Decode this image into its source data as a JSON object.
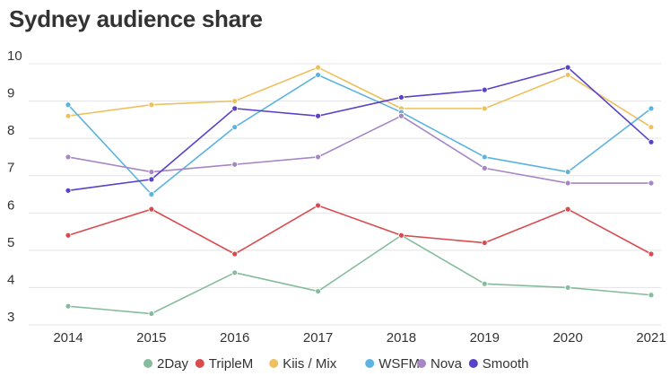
{
  "chart_data": {
    "type": "line",
    "title": "Sydney audience share",
    "xlabel": "",
    "ylabel": "",
    "x": [
      "2014",
      "2015",
      "2016",
      "2017",
      "2018",
      "2019",
      "2020",
      "2021"
    ],
    "ylim": [
      3,
      10
    ],
    "yticks": [
      "3",
      "4",
      "5",
      "6",
      "7",
      "8",
      "9",
      "10"
    ],
    "grid": true,
    "legend_position": "bottom",
    "series": [
      {
        "name": "2Day",
        "color": "#86bc9d",
        "values": [
          3.5,
          3.3,
          4.4,
          3.9,
          5.4,
          4.1,
          4.0,
          3.8
        ]
      },
      {
        "name": "TripleM",
        "color": "#d94b4f",
        "values": [
          5.4,
          6.1,
          4.9,
          6.2,
          5.4,
          5.2,
          6.1,
          4.9
        ]
      },
      {
        "name": "Kiis / Mix",
        "color": "#eec05e",
        "values": [
          8.6,
          8.9,
          9.0,
          9.9,
          8.8,
          8.8,
          9.7,
          8.3
        ]
      },
      {
        "name": "WSFM",
        "color": "#5cb3e0",
        "values": [
          8.9,
          6.5,
          8.3,
          9.7,
          8.7,
          7.5,
          7.1,
          8.8
        ]
      },
      {
        "name": "Nova",
        "color": "#a686c4",
        "values": [
          7.5,
          7.1,
          7.3,
          7.5,
          8.6,
          7.2,
          6.8,
          6.8
        ]
      },
      {
        "name": "Smooth",
        "color": "#5b41c8",
        "values": [
          6.6,
          6.9,
          8.8,
          8.6,
          9.1,
          9.3,
          9.9,
          7.9
        ]
      }
    ]
  }
}
